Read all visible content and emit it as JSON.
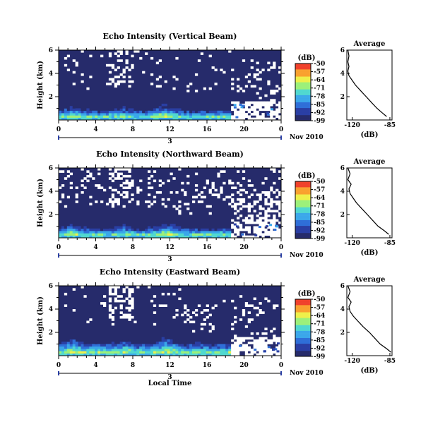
{
  "figure": {
    "xlabel": "Local Time",
    "date_label": "Nov 2010",
    "date_tick": "3",
    "colorbar_unit": "(dB)",
    "colorbar_ticks": [
      "-50",
      "-57",
      "-64",
      "-71",
      "-78",
      "-85",
      "-92",
      "-99"
    ],
    "colorscale": [
      "#262b6b",
      "#2a3fa4",
      "#2f6fd8",
      "#3aa7ea",
      "#50d8d0",
      "#9cf07a",
      "#eef04a",
      "#f9a12e",
      "#f0402a"
    ]
  },
  "chart_data": [
    {
      "type": "heatmap",
      "title": "Echo Intensity (Vertical Beam)",
      "ylabel": "Height (km)",
      "x_ticks": [
        "0",
        "4",
        "8",
        "12",
        "16",
        "20",
        "0"
      ],
      "y_ticks": [
        "6",
        "4",
        "2"
      ],
      "xlim": [
        0,
        24
      ],
      "ylim": [
        0,
        6
      ],
      "zlim": [
        -99,
        -50
      ],
      "background_value": -99,
      "profile": {
        "title": "Average",
        "xlabel": "(dB)",
        "x_ticks": [
          "-120",
          "-85"
        ],
        "y_ticks": [
          "6",
          "4",
          "2"
        ],
        "xlim": [
          -125,
          -83
        ],
        "ylim": [
          0,
          6
        ],
        "height": [
          0.3,
          0.6,
          1.0,
          1.5,
          2.0,
          2.5,
          3.0,
          3.4,
          3.8,
          4.2,
          4.6,
          5.0,
          5.5,
          6.0
        ],
        "value": [
          -88,
          -92,
          -97,
          -102,
          -107,
          -112,
          -117,
          -120,
          -123,
          -124,
          -123,
          -124,
          -123,
          -124
        ]
      }
    },
    {
      "type": "heatmap",
      "title": "Echo Intensity (Northward Beam)",
      "ylabel": "Height (km)",
      "x_ticks": [
        "0",
        "4",
        "8",
        "12",
        "16",
        "20",
        "0"
      ],
      "y_ticks": [
        "6",
        "4",
        "2"
      ],
      "xlim": [
        0,
        24
      ],
      "ylim": [
        0,
        6
      ],
      "zlim": [
        -99,
        -50
      ],
      "background_value": -99,
      "profile": {
        "title": "Average",
        "xlabel": "(dB)",
        "x_ticks": [
          "-120",
          "-85"
        ],
        "y_ticks": [
          "6",
          "4",
          "2"
        ],
        "xlim": [
          -125,
          -83
        ],
        "ylim": [
          0,
          6
        ],
        "height": [
          0.3,
          0.6,
          1.0,
          1.5,
          2.0,
          2.5,
          3.0,
          3.4,
          3.8,
          4.2,
          4.6,
          5.0,
          5.5,
          6.0
        ],
        "value": [
          -86,
          -90,
          -96,
          -101,
          -106,
          -111,
          -116,
          -119,
          -122,
          -123,
          -121,
          -124,
          -122,
          -124
        ]
      }
    },
    {
      "type": "heatmap",
      "title": "Echo Intensity (Eastward Beam)",
      "ylabel": "Height (km)",
      "x_ticks": [
        "0",
        "4",
        "8",
        "12",
        "16",
        "20",
        "0"
      ],
      "y_ticks": [
        "6",
        "4",
        "2"
      ],
      "xlim": [
        0,
        24
      ],
      "ylim": [
        0,
        6
      ],
      "zlim": [
        -99,
        -50
      ],
      "background_value": -99,
      "profile": {
        "title": "Average",
        "xlabel": "(dB)",
        "x_ticks": [
          "-120",
          "-85"
        ],
        "y_ticks": [
          "6",
          "4",
          "2"
        ],
        "xlim": [
          -125,
          -83
        ],
        "ylim": [
          0,
          6
        ],
        "height": [
          0.3,
          0.6,
          1.0,
          1.5,
          2.0,
          2.5,
          3.0,
          3.4,
          3.8,
          4.2,
          4.6,
          5.0,
          5.5,
          6.0
        ],
        "value": [
          -84,
          -88,
          -94,
          -99,
          -104,
          -110,
          -115,
          -119,
          -122,
          -123,
          -121,
          -124,
          -122,
          -124
        ]
      }
    }
  ]
}
